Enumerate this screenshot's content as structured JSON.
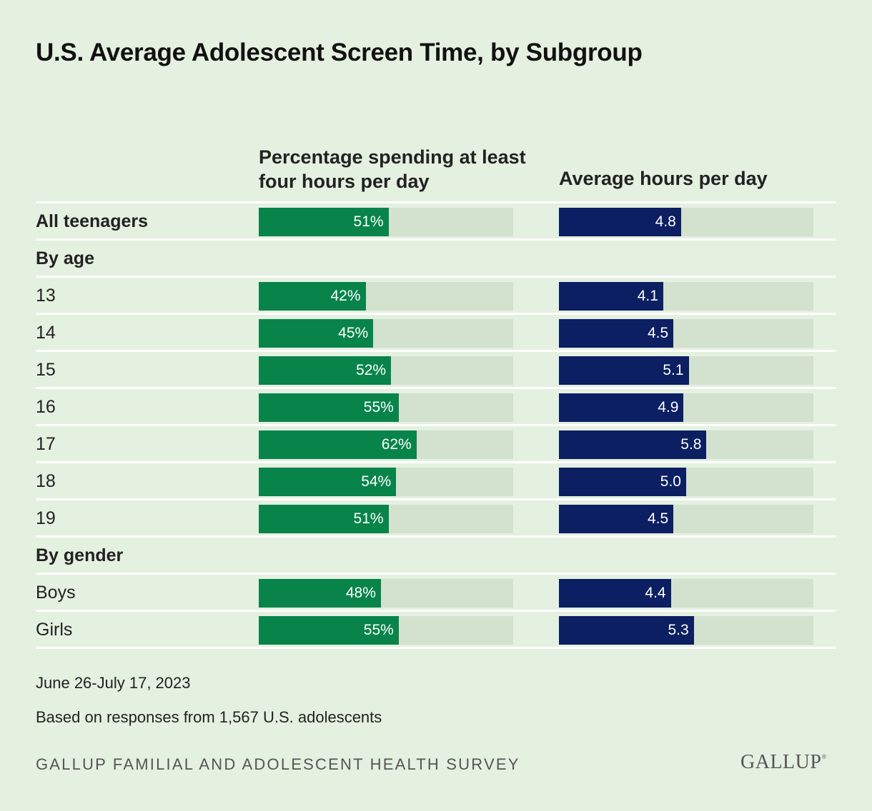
{
  "title": "U.S. Average Adolescent Screen Time, by Subgroup",
  "columns": {
    "pct_header": "Percentage spending at least four hours per day",
    "hours_header": "Average hours per day"
  },
  "colors": {
    "background": "#e4f0e0",
    "pct_bar": "#08844a",
    "hours_bar": "#0b1f62",
    "track": "#d3e1cf"
  },
  "chart_data": {
    "type": "bar",
    "orientation": "horizontal",
    "scales": {
      "pct_max": 100,
      "hours_max": 10
    },
    "rows": [
      {
        "label": "All teenagers",
        "kind": "total",
        "pct": 51,
        "pct_label": "51%",
        "hours": 4.8,
        "hours_label": "4.8"
      },
      {
        "label": "By age",
        "kind": "section"
      },
      {
        "label": "13",
        "kind": "item",
        "pct": 42,
        "pct_label": "42%",
        "hours": 4.1,
        "hours_label": "4.1"
      },
      {
        "label": "14",
        "kind": "item",
        "pct": 45,
        "pct_label": "45%",
        "hours": 4.5,
        "hours_label": "4.5"
      },
      {
        "label": "15",
        "kind": "item",
        "pct": 52,
        "pct_label": "52%",
        "hours": 5.1,
        "hours_label": "5.1"
      },
      {
        "label": "16",
        "kind": "item",
        "pct": 55,
        "pct_label": "55%",
        "hours": 4.9,
        "hours_label": "4.9"
      },
      {
        "label": "17",
        "kind": "item",
        "pct": 62,
        "pct_label": "62%",
        "hours": 5.8,
        "hours_label": "5.8"
      },
      {
        "label": "18",
        "kind": "item",
        "pct": 54,
        "pct_label": "54%",
        "hours": 5.0,
        "hours_label": "5.0"
      },
      {
        "label": "19",
        "kind": "item",
        "pct": 51,
        "pct_label": "51%",
        "hours": 4.5,
        "hours_label": "4.5"
      },
      {
        "label": "By gender",
        "kind": "section"
      },
      {
        "label": "Boys",
        "kind": "item",
        "pct": 48,
        "pct_label": "48%",
        "hours": 4.4,
        "hours_label": "4.4"
      },
      {
        "label": "Girls",
        "kind": "item",
        "pct": 55,
        "pct_label": "55%",
        "hours": 5.3,
        "hours_label": "5.3"
      }
    ]
  },
  "footer": {
    "date": "June 26-July 17, 2023",
    "note": "Based on responses from 1,567 U.S. adolescents",
    "survey": "GALLUP FAMILIAL AND ADOLESCENT HEALTH SURVEY",
    "logo": "GALLUP",
    "logo_mark": "®"
  }
}
